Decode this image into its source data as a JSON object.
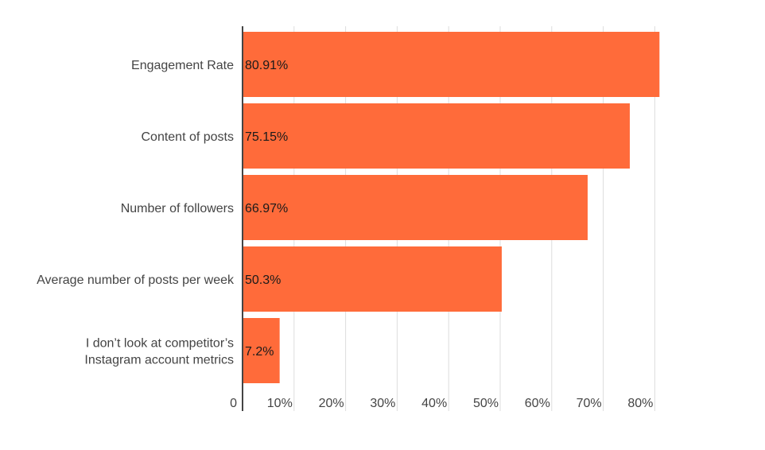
{
  "chart_data": {
    "type": "bar",
    "orientation": "horizontal",
    "title": "",
    "xlabel": "",
    "ylabel": "",
    "categories": [
      [
        "Engagement Rate"
      ],
      [
        "Content of posts"
      ],
      [
        "Number of followers"
      ],
      [
        "Average number of posts per week"
      ],
      [
        "I don’t look at competitor’s",
        "Instagram account metrics"
      ]
    ],
    "values": [
      80.91,
      75.15,
      66.97,
      50.3,
      7.2
    ],
    "data_labels": [
      "80.91%",
      "75.15%",
      "66.97%",
      "50.3%",
      "7.2%"
    ],
    "ticks": [
      {
        "value": 0,
        "label": "0"
      },
      {
        "value": 10,
        "label": "10%"
      },
      {
        "value": 20,
        "label": "20%"
      },
      {
        "value": 30,
        "label": "30%"
      },
      {
        "value": 40,
        "label": "40%"
      },
      {
        "value": 50,
        "label": "50%"
      },
      {
        "value": 60,
        "label": "60%"
      },
      {
        "value": 70,
        "label": "70%"
      },
      {
        "value": 80,
        "label": "80%"
      }
    ],
    "xlim": [
      0,
      80
    ],
    "grid": true,
    "bar_color": "#ff6b3a",
    "grid_color": "#dddddd",
    "axis_color": "#444444"
  }
}
